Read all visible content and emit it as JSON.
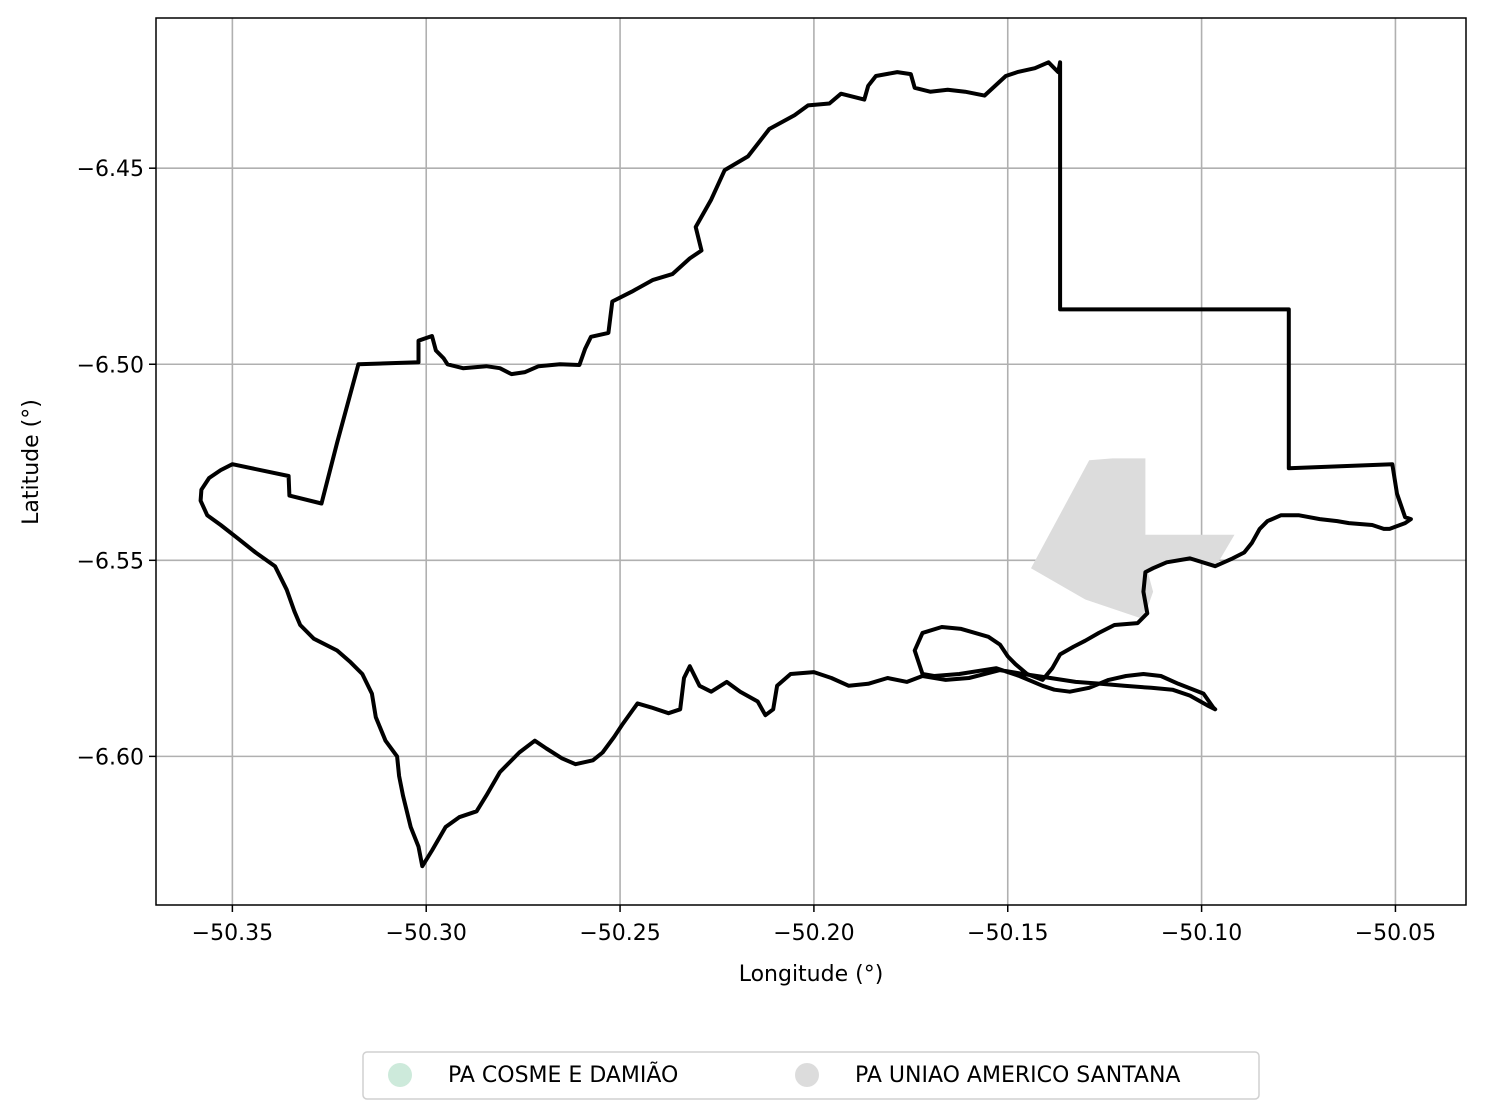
{
  "map": {
    "xlabel": "Longitude (°)",
    "ylabel": "Latitude (°)",
    "xlim": [
      -50.3697,
      -50.0318
    ],
    "ylim": [
      -6.6379,
      -6.4117
    ],
    "xticks": [
      {
        "value": -50.35,
        "label": "−50.35"
      },
      {
        "value": -50.3,
        "label": "−50.30"
      },
      {
        "value": -50.25,
        "label": "−50.25"
      },
      {
        "value": -50.2,
        "label": "−50.20"
      },
      {
        "value": -50.15,
        "label": "−50.15"
      },
      {
        "value": -50.1,
        "label": "−50.10"
      },
      {
        "value": -50.05,
        "label": "−50.05"
      }
    ],
    "yticks": [
      {
        "value": -6.45,
        "label": "−6.45"
      },
      {
        "value": -6.5,
        "label": "−6.50"
      },
      {
        "value": -6.55,
        "label": "−6.55"
      },
      {
        "value": -6.6,
        "label": "−6.60"
      }
    ],
    "grid": true,
    "outline_color": "#000000",
    "layers": [
      {
        "name": "PA COSME E DAMIÃO",
        "color": "#cdeadb",
        "rings": []
      },
      {
        "name": "PA UNIAO AMERICO SANTANA",
        "color": "#dcdcdc",
        "rings": [
          [
            [
              -50.144,
              -6.552
            ],
            [
              -50.129,
              -6.5245
            ],
            [
              -50.123,
              -6.524
            ],
            [
              -50.1145,
              -6.524
            ],
            [
              -50.1145,
              -6.5435
            ],
            [
              -50.0915,
              -6.5435
            ],
            [
              -50.096,
              -6.551
            ],
            [
              -50.103,
              -6.5495
            ],
            [
              -50.11,
              -6.5505
            ],
            [
              -50.114,
              -6.5525
            ],
            [
              -50.1125,
              -6.558
            ],
            [
              -50.115,
              -6.565
            ],
            [
              -50.13,
              -6.56
            ],
            [
              -50.144,
              -6.552
            ]
          ]
        ]
      }
    ],
    "boundary": [
      [
        -50.35,
        -6.5255
      ],
      [
        -50.3355,
        -6.5285
      ],
      [
        -50.3353,
        -6.5335
      ],
      [
        -50.327,
        -6.5355
      ],
      [
        -50.323,
        -6.52
      ],
      [
        -50.3175,
        -6.5
      ],
      [
        -50.302,
        -6.4995
      ],
      [
        -50.302,
        -6.494
      ],
      [
        -50.2985,
        -6.4928
      ],
      [
        -50.2975,
        -6.4965
      ],
      [
        -50.2955,
        -6.4985
      ],
      [
        -50.2945,
        -6.5
      ],
      [
        -50.2905,
        -6.501
      ],
      [
        -50.2845,
        -6.5005
      ],
      [
        -50.281,
        -6.501
      ],
      [
        -50.278,
        -6.5025
      ],
      [
        -50.2745,
        -6.502
      ],
      [
        -50.271,
        -6.5005
      ],
      [
        -50.2655,
        -6.5
      ],
      [
        -50.2605,
        -6.5002
      ],
      [
        -50.259,
        -6.496
      ],
      [
        -50.2575,
        -6.493
      ],
      [
        -50.253,
        -6.492
      ],
      [
        -50.252,
        -6.484
      ],
      [
        -50.247,
        -6.4815
      ],
      [
        -50.2415,
        -6.4785
      ],
      [
        -50.2365,
        -6.477
      ],
      [
        -50.232,
        -6.473
      ],
      [
        -50.229,
        -6.471
      ],
      [
        -50.2305,
        -6.465
      ],
      [
        -50.2265,
        -6.458
      ],
      [
        -50.223,
        -6.4505
      ],
      [
        -50.217,
        -6.447
      ],
      [
        -50.2115,
        -6.44
      ],
      [
        -50.205,
        -6.4365
      ],
      [
        -50.2015,
        -6.434
      ],
      [
        -50.196,
        -6.4335
      ],
      [
        -50.193,
        -6.431
      ],
      [
        -50.187,
        -6.4325
      ],
      [
        -50.186,
        -6.429
      ],
      [
        -50.184,
        -6.4265
      ],
      [
        -50.1785,
        -6.4255
      ],
      [
        -50.175,
        -6.426
      ],
      [
        -50.174,
        -6.4295
      ],
      [
        -50.17,
        -6.4305
      ],
      [
        -50.1655,
        -6.43
      ],
      [
        -50.161,
        -6.4305
      ],
      [
        -50.156,
        -6.4315
      ],
      [
        -50.1505,
        -6.4265
      ],
      [
        -50.1475,
        -6.4255
      ],
      [
        -50.143,
        -6.4245
      ],
      [
        -50.1395,
        -6.423
      ],
      [
        -50.137,
        -6.4255
      ],
      [
        -50.1365,
        -6.423
      ],
      [
        -50.1365,
        -6.486
      ],
      [
        -50.0775,
        -6.486
      ],
      [
        -50.0775,
        -6.5265
      ],
      [
        -50.0508,
        -6.5255
      ],
      [
        -50.0496,
        -6.533
      ],
      [
        -50.0475,
        -6.539
      ],
      [
        -50.046,
        -6.5395
      ],
      [
        -50.0475,
        -6.5405
      ],
      [
        -50.0515,
        -6.542
      ],
      [
        -50.053,
        -6.542
      ],
      [
        -50.056,
        -6.541
      ],
      [
        -50.062,
        -6.5405
      ],
      [
        -50.065,
        -6.54
      ],
      [
        -50.0695,
        -6.5395
      ],
      [
        -50.075,
        -6.5385
      ],
      [
        -50.0795,
        -6.5385
      ],
      [
        -50.083,
        -6.54
      ],
      [
        -50.085,
        -6.542
      ],
      [
        -50.087,
        -6.5455
      ],
      [
        -50.089,
        -6.548
      ],
      [
        -50.092,
        -6.5495
      ],
      [
        -50.0965,
        -6.5515
      ],
      [
        -50.103,
        -6.5495
      ],
      [
        -50.109,
        -6.5505
      ],
      [
        -50.1125,
        -6.552
      ],
      [
        -50.1145,
        -6.553
      ],
      [
        -50.115,
        -6.558
      ],
      [
        -50.114,
        -6.5635
      ],
      [
        -50.1165,
        -6.566
      ],
      [
        -50.1225,
        -6.5665
      ],
      [
        -50.1265,
        -6.5685
      ],
      [
        -50.13,
        -6.5705
      ],
      [
        -50.133,
        -6.572
      ],
      [
        -50.1365,
        -6.574
      ],
      [
        -50.1385,
        -6.5775
      ],
      [
        -50.141,
        -6.5805
      ],
      [
        -50.145,
        -6.579
      ],
      [
        -50.148,
        -6.5765
      ],
      [
        -50.15,
        -6.5745
      ],
      [
        -50.152,
        -6.5715
      ],
      [
        -50.155,
        -6.5695
      ],
      [
        -50.162,
        -6.5675
      ],
      [
        -50.167,
        -6.567
      ],
      [
        -50.172,
        -6.5685
      ],
      [
        -50.174,
        -6.573
      ],
      [
        -50.172,
        -6.579
      ],
      [
        -50.169,
        -6.5795
      ],
      [
        -50.1625,
        -6.579
      ],
      [
        -50.153,
        -6.5775
      ],
      [
        -50.147,
        -6.5795
      ],
      [
        -50.141,
        -6.582
      ],
      [
        -50.138,
        -6.583
      ],
      [
        -50.134,
        -6.5835
      ],
      [
        -50.129,
        -6.5825
      ],
      [
        -50.124,
        -6.5805
      ],
      [
        -50.1195,
        -6.5795
      ],
      [
        -50.115,
        -6.579
      ],
      [
        -50.1105,
        -6.5795
      ],
      [
        -50.106,
        -6.5815
      ],
      [
        -50.0995,
        -6.584
      ],
      [
        -50.097,
        -6.5875
      ],
      [
        -50.0965,
        -6.588
      ],
      [
        -50.0985,
        -6.587
      ],
      [
        -50.103,
        -6.5845
      ],
      [
        -50.1075,
        -6.583
      ],
      [
        -50.113,
        -6.5825
      ],
      [
        -50.12,
        -6.582
      ],
      [
        -50.126,
        -6.5815
      ],
      [
        -50.1325,
        -6.581
      ],
      [
        -50.139,
        -6.58
      ],
      [
        -50.146,
        -6.579
      ],
      [
        -50.152,
        -6.578
      ],
      [
        -50.16,
        -6.58
      ],
      [
        -50.166,
        -6.5805
      ],
      [
        -50.172,
        -6.5795
      ],
      [
        -50.176,
        -6.581
      ],
      [
        -50.181,
        -6.58
      ],
      [
        -50.186,
        -6.5815
      ],
      [
        -50.191,
        -6.582
      ],
      [
        -50.1955,
        -6.58
      ],
      [
        -50.2,
        -6.5785
      ],
      [
        -50.206,
        -6.579
      ],
      [
        -50.2095,
        -6.582
      ],
      [
        -50.2105,
        -6.588
      ],
      [
        -50.2125,
        -6.5895
      ],
      [
        -50.2145,
        -6.586
      ],
      [
        -50.219,
        -6.5835
      ],
      [
        -50.2225,
        -6.581
      ],
      [
        -50.2265,
        -6.5835
      ],
      [
        -50.2295,
        -6.582
      ],
      [
        -50.232,
        -6.577
      ],
      [
        -50.2335,
        -6.58
      ],
      [
        -50.2345,
        -6.588
      ],
      [
        -50.2375,
        -6.589
      ],
      [
        -50.242,
        -6.5875
      ],
      [
        -50.2455,
        -6.5865
      ],
      [
        -50.2495,
        -6.592
      ],
      [
        -50.2515,
        -6.595
      ],
      [
        -50.2545,
        -6.599
      ],
      [
        -50.257,
        -6.601
      ],
      [
        -50.2615,
        -6.602
      ],
      [
        -50.265,
        -6.6005
      ],
      [
        -50.269,
        -6.598
      ],
      [
        -50.272,
        -6.596
      ],
      [
        -50.276,
        -6.599
      ],
      [
        -50.281,
        -6.604
      ],
      [
        -50.2845,
        -6.61
      ],
      [
        -50.287,
        -6.614
      ],
      [
        -50.2915,
        -6.6155
      ],
      [
        -50.295,
        -6.618
      ],
      [
        -50.2985,
        -6.624
      ],
      [
        -50.301,
        -6.628
      ],
      [
        -50.302,
        -6.623
      ],
      [
        -50.304,
        -6.618
      ],
      [
        -50.306,
        -6.61
      ],
      [
        -50.307,
        -6.605
      ],
      [
        -50.3075,
        -6.6
      ],
      [
        -50.3105,
        -6.596
      ],
      [
        -50.313,
        -6.59
      ],
      [
        -50.314,
        -6.584
      ],
      [
        -50.3165,
        -6.579
      ],
      [
        -50.3195,
        -6.576
      ],
      [
        -50.323,
        -6.573
      ],
      [
        -50.329,
        -6.57
      ],
      [
        -50.3325,
        -6.5665
      ],
      [
        -50.334,
        -6.563
      ],
      [
        -50.336,
        -6.5575
      ],
      [
        -50.339,
        -6.5515
      ],
      [
        -50.344,
        -6.548
      ],
      [
        -50.3485,
        -6.5445
      ],
      [
        -50.353,
        -6.541
      ],
      [
        -50.3565,
        -6.5385
      ],
      [
        -50.3582,
        -6.5348
      ],
      [
        -50.358,
        -6.532
      ],
      [
        -50.356,
        -6.529
      ],
      [
        -50.353,
        -6.527
      ],
      [
        -50.35,
        -6.5255
      ]
    ]
  }
}
